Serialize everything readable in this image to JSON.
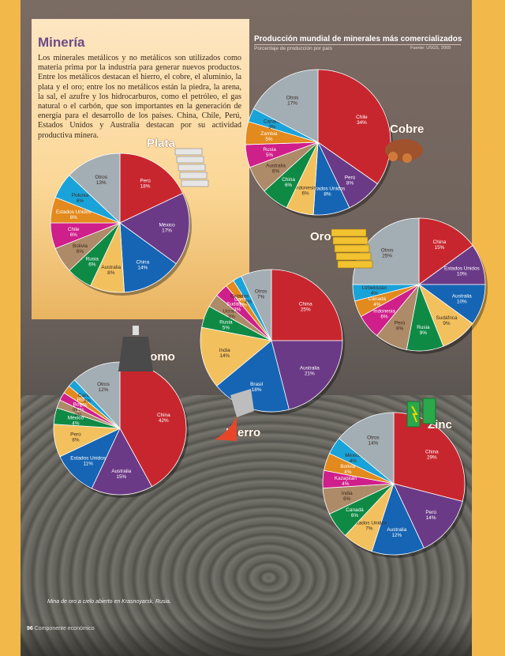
{
  "panel": {
    "title": "Minería",
    "text": "Los minerales metálicos y no metálicos son utilizados como materia prima por la industria para generar nuevos productos. Entre los metálicos destacan el hierro, el cobre, el aluminio, la plata y el oro; entre los no metálicos están la piedra, la arena, la sal, el azufre y los hidrocarburos, como el petróleo, el gas natural o el carbón, que son importantes en la generación de energía para el desarrollo de los países. China, Chile, Perú, Estados Unidos y Australia destacan por su actividad productiva minera."
  },
  "header": {
    "title": "Producción mundial de minerales más comercializados",
    "subtitle": "Porcentaje de producción por país",
    "source": "Fuente: USGS, 2009"
  },
  "caption": "Mina de oro a cielo abierto en Krasnoyarsk, Rusia.",
  "footer": {
    "page": "96",
    "text": "Componente económico"
  },
  "colors": {
    "red": "#c8262e",
    "purple": "#6b3a87",
    "blue": "#1565b4",
    "gold": "#f2c15e",
    "green": "#0f8a45",
    "tan": "#ad8a68",
    "magenta": "#cf1f8a",
    "orange": "#e38a1e",
    "yellow": "#e9b42a",
    "cyan": "#1aa3d9",
    "gray": "#a3adb4"
  },
  "chart_data": [
    {
      "type": "pie",
      "title": "Plata",
      "labels": [
        "Perú",
        "México",
        "China",
        "Australia",
        "Rusia",
        "Bolivia",
        "Chile",
        "Estados Unidos",
        "Polonia",
        "Otros"
      ],
      "values": [
        18,
        17,
        14,
        8,
        6,
        6,
        6,
        6,
        6,
        13
      ],
      "value_labels": [
        "18%",
        "17%",
        "14%",
        "8%",
        "6%",
        "6%",
        "6%",
        "6%",
        "6%",
        "13%"
      ],
      "colors": [
        "red",
        "purple",
        "blue",
        "gold",
        "green",
        "tan",
        "magenta",
        "orange",
        "cyan",
        "gray"
      ]
    },
    {
      "type": "pie",
      "title": "Cobre",
      "labels": [
        "Chile",
        "Perú",
        "Estados Unidos",
        "Indonesia",
        "China",
        "Australia",
        "Rusia",
        "Zambia",
        "Canadá",
        "Otros"
      ],
      "values": [
        34,
        8,
        8,
        6,
        6,
        6,
        5,
        5,
        3,
        17
      ],
      "value_labels": [
        "34%",
        "8%",
        "8%",
        "6%",
        "6%",
        "6%",
        "5%",
        "5%",
        "3%",
        "17%"
      ],
      "colors": [
        "red",
        "purple",
        "blue",
        "gold",
        "green",
        "tan",
        "magenta",
        "orange",
        "cyan",
        "gray"
      ]
    },
    {
      "type": "pie",
      "title": "Oro",
      "labels": [
        "China",
        "Estados Unidos",
        "Australia",
        "Sudáfrica",
        "Rusia",
        "Perú",
        "Indonesia",
        "Canadá",
        "Uzbekistán",
        "Otros"
      ],
      "values": [
        15,
        10,
        10,
        9,
        9,
        8,
        6,
        4,
        4,
        25
      ],
      "value_labels": [
        "15%",
        "10%",
        "10%",
        "9%",
        "9%",
        "8%",
        "6%",
        "4%",
        "4%",
        "25%"
      ],
      "colors": [
        "red",
        "purple",
        "blue",
        "gold",
        "green",
        "tan",
        "magenta",
        "orange",
        "cyan",
        "gray"
      ]
    },
    {
      "type": "pie",
      "title": "Hierro",
      "labels": [
        "China",
        "Australia",
        "Brasil",
        "India",
        "Rusia",
        "Ucrania",
        "Sudáfrica",
        "Canadá",
        "Estados Unidos",
        "Otros"
      ],
      "values": [
        25,
        21,
        18,
        14,
        5,
        3,
        3,
        2,
        2,
        7
      ],
      "value_labels": [
        "25%",
        "21%",
        "18%",
        "14%",
        "5%",
        "3%",
        "3%",
        "2%",
        "2%",
        "7%"
      ],
      "colors": [
        "red",
        "purple",
        "blue",
        "gold",
        "green",
        "tan",
        "magenta",
        "orange",
        "cyan",
        "gray"
      ]
    },
    {
      "type": "pie",
      "title": "Plomo",
      "labels": [
        "China",
        "Australia",
        "Estados Unidos",
        "Perú",
        "México",
        "India",
        "Bolivia",
        "Rusia",
        "Canadá",
        "Otros"
      ],
      "values": [
        42,
        15,
        11,
        8,
        4,
        2,
        2,
        2,
        2,
        12
      ],
      "value_labels": [
        "42%",
        "15%",
        "11%",
        "8%",
        "4%",
        "2%",
        "2%",
        "2%",
        "2%",
        "12%"
      ],
      "colors": [
        "red",
        "purple",
        "blue",
        "gold",
        "green",
        "tan",
        "magenta",
        "orange",
        "cyan",
        "gray"
      ]
    },
    {
      "type": "pie",
      "title": "Zinc",
      "labels": [
        "China",
        "Perú",
        "Australia",
        "Estados Unidos",
        "Canadá",
        "India",
        "Kazajstán",
        "Bolivia",
        "México",
        "Otros"
      ],
      "values": [
        29,
        14,
        12,
        7,
        6,
        6,
        4,
        4,
        4,
        14
      ],
      "value_labels": [
        "29%",
        "14%",
        "12%",
        "7%",
        "6%",
        "6%",
        "4%",
        "4%",
        "4%",
        "14%"
      ],
      "colors": [
        "red",
        "purple",
        "blue",
        "gold",
        "green",
        "tan",
        "magenta",
        "orange",
        "cyan",
        "gray"
      ]
    }
  ]
}
